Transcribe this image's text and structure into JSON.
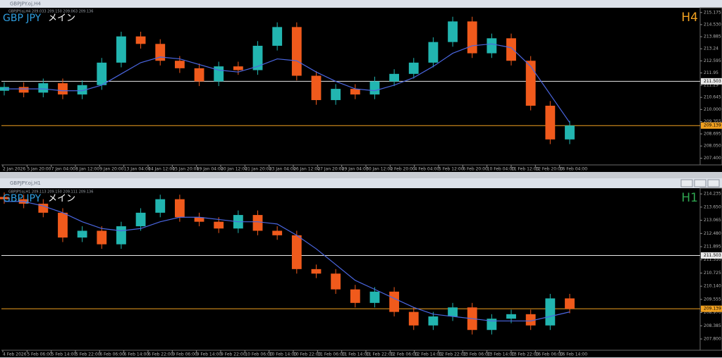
{
  "chart_data": [
    {
      "type": "candlestick",
      "window_title": "GBPJPY.oj,H4",
      "info": "GBPJPY.oj,H4 209.033 209.150 209.063 209.136",
      "symbol": "GBP JPY",
      "label": "メイン",
      "timeframe": "H4",
      "timeframe_color": "#f0a020",
      "up_color": "#22b5b0",
      "down_color": "#f05a1c",
      "ma_color": "#4a66e0",
      "ylim": [
        207.04,
        215.43
      ],
      "yticks": [
        215.175,
        {
          "value": 214.53,
          "label": "214.530"
        },
        213.885,
        213.24,
        212.595,
        211.95,
        211.29,
        210.645,
        {
          "value": 210,
          "label": "210.000"
        },
        209.355,
        208.695,
        {
          "value": 208.05,
          "label": "208.050"
        },
        {
          "value": 207.4,
          "label": "207.400"
        }
      ],
      "levels": [
        {
          "value": 211.503,
          "color": "#e8e8e8"
        },
        {
          "value": 209.139,
          "color": "#f0a020"
        }
      ],
      "xlabels": [
        "2 Jan 2026",
        "5 Jan 20:00",
        "7 Jan 04:00",
        "8 Jan 12:00",
        "9 Jan 20:00",
        "13 Jan 04:00",
        "14 Jan 12:00",
        "15 Jan 20:00",
        "19 Jan 04:00",
        "20 Jan 12:00",
        "21 Jan 20:00",
        "23 Jan 04:00",
        "26 Jan 12:00",
        "27 Jan 20:00",
        "29 Jan 04:00",
        "30 Jan 12:00",
        "2 Feb 20:00",
        "4 Feb 04:00",
        "5 Feb 12:00",
        "6 Feb 20:00",
        "10 Feb 04:00",
        "11 Feb 12:00",
        "12 Feb 20:00",
        "16 Feb 04:00"
      ],
      "open": [
        211.0,
        211.2,
        210.9,
        211.4,
        210.8,
        211.3,
        212.5,
        213.9,
        213.5,
        212.6,
        212.2,
        211.5,
        212.3,
        212.1,
        213.4,
        214.4,
        211.8,
        210.5,
        211.1,
        210.8,
        211.5,
        211.9,
        212.5,
        213.6,
        214.7,
        213.0,
        213.8,
        212.6,
        210.2,
        208.4
      ],
      "high": [
        211.45,
        211.45,
        211.65,
        211.65,
        211.55,
        212.75,
        214.15,
        214.15,
        213.75,
        212.85,
        212.45,
        212.55,
        212.55,
        213.65,
        214.65,
        214.65,
        212.05,
        211.35,
        211.35,
        211.75,
        212.15,
        212.75,
        213.85,
        214.95,
        214.95,
        214.05,
        214.05,
        212.85,
        210.45,
        209.39
      ],
      "low": [
        210.75,
        210.65,
        210.65,
        210.55,
        210.55,
        211.05,
        212.25,
        213.25,
        212.35,
        211.95,
        211.25,
        211.25,
        211.85,
        211.85,
        213.15,
        211.55,
        210.25,
        210.25,
        210.55,
        210.55,
        211.25,
        211.65,
        212.25,
        213.35,
        212.75,
        212.75,
        212.35,
        209.95,
        208.15,
        208.15
      ],
      "close": [
        211.2,
        210.9,
        211.4,
        210.8,
        211.3,
        212.5,
        213.9,
        213.5,
        212.6,
        212.2,
        211.5,
        212.3,
        212.1,
        213.4,
        214.4,
        211.8,
        210.5,
        211.1,
        210.8,
        211.5,
        211.9,
        212.5,
        213.6,
        214.7,
        213.0,
        213.8,
        212.6,
        210.2,
        208.4,
        209.14
      ],
      "ma": [
        211.1,
        211.1,
        211.1,
        211.0,
        211.0,
        211.3,
        211.9,
        212.5,
        212.8,
        212.7,
        212.4,
        212.1,
        212.0,
        212.3,
        212.7,
        212.6,
        212.0,
        211.5,
        211.1,
        211.0,
        211.3,
        211.7,
        212.3,
        213.0,
        213.4,
        213.5,
        213.3,
        212.3,
        210.8,
        209.3
      ]
    },
    {
      "type": "candlestick",
      "window_title": "GBPJPY.oj,H1",
      "info": "GBPJPY.oj,H1 209.113 209.150 209.111 209.136",
      "symbol": "GBP JPY",
      "label": "メイン",
      "timeframe": "H1",
      "timeframe_color": "#2ea44f",
      "up_color": "#22b5b0",
      "down_color": "#f05a1c",
      "ma_color": "#4a66e0",
      "ylim": [
        207.3,
        214.49
      ],
      "yticks": [
        214.235,
        {
          "value": 213.65,
          "label": "213.650"
        },
        213.065,
        {
          "value": 212.48,
          "label": "212.480"
        },
        211.895,
        {
          "value": 211.31,
          "label": "211.310"
        },
        210.725,
        {
          "value": 210.14,
          "label": "210.140"
        },
        209.555,
        {
          "value": 208.97,
          "label": "208.970"
        },
        208.385,
        {
          "value": 207.8,
          "label": "207.800"
        }
      ],
      "levels": [
        {
          "value": 211.503,
          "color": "#e8e8e8"
        },
        {
          "value": 209.139,
          "color": "#f0a020"
        }
      ],
      "xlabels": [
        "4 Feb 2026",
        "5 Feb 06:00",
        "5 Feb 14:00",
        "5 Feb 22:00",
        "6 Feb 06:00",
        "6 Feb 14:00",
        "6 Feb 22:00",
        "9 Feb 06:00",
        "9 Feb 14:00",
        "9 Feb 22:00",
        "10 Feb 06:00",
        "10 Feb 14:00",
        "10 Feb 22:00",
        "11 Feb 06:00",
        "11 Feb 14:00",
        "11 Feb 22:00",
        "12 Feb 06:00",
        "12 Feb 14:00",
        "12 Feb 22:00",
        "13 Feb 06:00",
        "13 Feb 14:00",
        "13 Feb 22:00",
        "16 Feb 06:00",
        "16 Feb 14:00"
      ],
      "open": [
        214.1,
        214.0,
        213.8,
        213.4,
        212.3,
        212.6,
        212.0,
        212.8,
        213.4,
        214.0,
        213.2,
        213.0,
        212.7,
        213.3,
        212.6,
        212.4,
        210.9,
        210.7,
        210.0,
        209.4,
        209.9,
        209.0,
        208.4,
        208.8,
        209.2,
        208.2,
        208.7,
        208.9,
        208.4,
        209.6
      ],
      "high": [
        214.3,
        214.2,
        214.0,
        213.6,
        212.8,
        212.8,
        213.0,
        213.6,
        214.2,
        214.2,
        213.4,
        213.2,
        213.5,
        213.5,
        212.8,
        212.6,
        211.1,
        210.9,
        210.2,
        210.1,
        210.1,
        209.2,
        209.0,
        209.4,
        209.4,
        208.9,
        209.1,
        209.1,
        209.8,
        209.8
      ],
      "low": [
        213.8,
        213.6,
        213.2,
        212.1,
        212.1,
        211.8,
        211.8,
        212.6,
        213.2,
        213.0,
        212.8,
        212.5,
        212.5,
        212.4,
        212.2,
        210.7,
        210.5,
        209.8,
        209.2,
        209.2,
        208.8,
        208.2,
        208.2,
        208.6,
        208.0,
        208.0,
        208.5,
        208.2,
        208.2,
        208.94
      ],
      "close": [
        214.0,
        213.8,
        213.4,
        212.3,
        212.6,
        212.0,
        212.8,
        213.4,
        214.0,
        213.2,
        213.0,
        212.7,
        213.3,
        212.6,
        212.4,
        210.9,
        210.7,
        210.0,
        209.4,
        209.9,
        209.0,
        208.4,
        208.8,
        209.2,
        208.2,
        208.7,
        208.9,
        208.4,
        209.6,
        209.14
      ],
      "ma": [
        213.9,
        213.9,
        213.7,
        213.4,
        213.0,
        212.7,
        212.6,
        212.7,
        213.0,
        213.2,
        213.2,
        213.1,
        213.0,
        213.0,
        212.9,
        212.4,
        211.8,
        211.1,
        210.4,
        210.0,
        209.6,
        209.2,
        208.9,
        208.8,
        208.7,
        208.6,
        208.6,
        208.6,
        208.8,
        209.0
      ]
    }
  ]
}
